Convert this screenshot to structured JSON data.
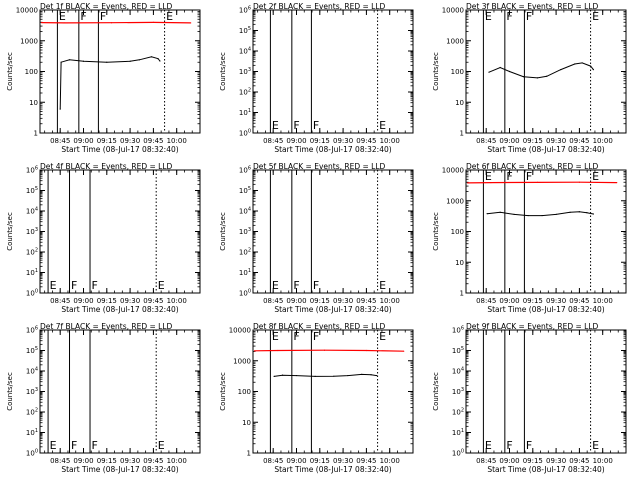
{
  "page": {
    "title": ""
  },
  "chart_data": [
    {
      "type": "line",
      "panel": "Det 1f",
      "title": "Det 1f BLACK = Events, RED = LLD",
      "xlabel": "Start Time (08-Jul-17 08:32:40)",
      "ylabel": "Counts/sec",
      "y_scale": "log",
      "ylim": [
        1,
        10000
      ],
      "y_tick_style": "plain",
      "x_tick_labels": [
        "08:45",
        "09:00",
        "09:15",
        "09:30",
        "09:45",
        "10:00"
      ],
      "series": [
        {
          "name": "BLACK = Events",
          "color": "#000000",
          "style": "black-curve",
          "points": [
            [
              8.75,
              6
            ],
            [
              8.76,
              200
            ],
            [
              8.85,
              240
            ],
            [
              9.0,
              215
            ],
            [
              9.25,
              200
            ],
            [
              9.5,
              215
            ],
            [
              9.6,
              240
            ],
            [
              9.73,
              300
            ],
            [
              9.8,
              260
            ],
            [
              9.82,
              220
            ]
          ]
        },
        {
          "name": "RED = LLD",
          "color": "#ff0000",
          "style": "red-flat",
          "points": [
            [
              8.55,
              3900
            ],
            [
              8.8,
              3800
            ],
            [
              9.3,
              3850
            ],
            [
              9.75,
              3950
            ],
            [
              10.15,
              3800
            ]
          ]
        }
      ],
      "annotations": [
        {
          "text": "E",
          "x": 8.72,
          "y_pos": "top",
          "line": "solid"
        },
        {
          "text": "F",
          "x": 8.95,
          "y_pos": "top",
          "line": "solid"
        },
        {
          "text": "F",
          "x": 9.16,
          "y_pos": "top",
          "line": "solid"
        },
        {
          "text": "E",
          "x": 9.87,
          "y_pos": "top",
          "line": "dotted"
        }
      ]
    },
    {
      "type": "line",
      "panel": "Det 2f",
      "title": "Det 2f BLACK = Events, RED = LLD",
      "xlabel": "Start Time (08-Jul-17 08:32:40)",
      "ylabel": "Counts/sec",
      "y_scale": "log",
      "ylim": [
        1,
        1000000
      ],
      "y_tick_style": "power",
      "x_tick_labels": [
        "08:45",
        "09:00",
        "09:15",
        "09:30",
        "09:45",
        "10:00"
      ],
      "series": [],
      "annotations": [
        {
          "text": "E",
          "x": 8.72,
          "y_pos": "bottom",
          "line": "solid"
        },
        {
          "text": "F",
          "x": 8.95,
          "y_pos": "bottom",
          "line": "solid"
        },
        {
          "text": "F",
          "x": 9.16,
          "y_pos": "bottom",
          "line": "solid"
        },
        {
          "text": "E",
          "x": 9.87,
          "y_pos": "bottom",
          "line": "dotted"
        }
      ]
    },
    {
      "type": "line",
      "panel": "Det 3f",
      "title": "Det 3f BLACK = Events, RED = LLD",
      "xlabel": "Start Time (08-Jul-17 08:32:40)",
      "ylabel": "Counts/sec",
      "y_scale": "log",
      "ylim": [
        1,
        10000
      ],
      "y_tick_style": "plain",
      "x_tick_labels": [
        "08:45",
        "09:00",
        "09:15",
        "09:30",
        "09:45",
        "10:00"
      ],
      "series": [
        {
          "name": "BLACK = Events",
          "color": "#000000",
          "style": "black-curve",
          "points": [
            [
              8.78,
              95
            ],
            [
              8.9,
              135
            ],
            [
              9.0,
              100
            ],
            [
              9.15,
              68
            ],
            [
              9.3,
              62
            ],
            [
              9.4,
              70
            ],
            [
              9.55,
              115
            ],
            [
              9.7,
              175
            ],
            [
              9.78,
              190
            ],
            [
              9.87,
              150
            ],
            [
              9.9,
              115
            ]
          ]
        }
      ],
      "annotations": [
        {
          "text": "E",
          "x": 8.72,
          "y_pos": "top",
          "line": "solid"
        },
        {
          "text": "F",
          "x": 8.95,
          "y_pos": "top",
          "line": "solid"
        },
        {
          "text": "F",
          "x": 9.16,
          "y_pos": "top",
          "line": "solid"
        },
        {
          "text": "E",
          "x": 9.87,
          "y_pos": "top",
          "line": "dotted"
        }
      ]
    },
    {
      "type": "line",
      "panel": "Det 4f",
      "title": "Det 4f BLACK = Events, RED = LLD",
      "xlabel": "Start Time (08-Jul-17 08:32:40)",
      "ylabel": "Counts/sec",
      "y_scale": "log",
      "ylim": [
        1,
        1000000
      ],
      "y_tick_style": "power",
      "x_tick_labels": [
        "08:45",
        "09:00",
        "09:15",
        "09:30",
        "09:45",
        "10:00"
      ],
      "series": [],
      "annotations": [
        {
          "text": "E",
          "x": 8.62,
          "y_pos": "bottom",
          "line": "solid"
        },
        {
          "text": "F",
          "x": 8.85,
          "y_pos": "bottom",
          "line": "solid"
        },
        {
          "text": "F",
          "x": 9.07,
          "y_pos": "bottom",
          "line": "solid"
        },
        {
          "text": "E",
          "x": 9.78,
          "y_pos": "bottom",
          "line": "dotted"
        }
      ]
    },
    {
      "type": "line",
      "panel": "Det 5f",
      "title": "Det 5f BLACK = Events, RED = LLD",
      "xlabel": "Start Time (08-Jul-17 08:32:40)",
      "ylabel": "Counts/sec",
      "y_scale": "log",
      "ylim": [
        1,
        1000000
      ],
      "y_tick_style": "power",
      "x_tick_labels": [
        "08:45",
        "09:00",
        "09:15",
        "09:30",
        "09:45",
        "10:00"
      ],
      "series": [],
      "annotations": [
        {
          "text": "E",
          "x": 8.72,
          "y_pos": "bottom",
          "line": "solid"
        },
        {
          "text": "F",
          "x": 8.95,
          "y_pos": "bottom",
          "line": "solid"
        },
        {
          "text": "F",
          "x": 9.16,
          "y_pos": "bottom",
          "line": "solid"
        },
        {
          "text": "E",
          "x": 9.87,
          "y_pos": "bottom",
          "line": "dotted"
        }
      ]
    },
    {
      "type": "line",
      "panel": "Det 6f",
      "title": "Det 6f BLACK = Events, RED = LLD",
      "xlabel": "Start Time (08-Jul-17 08:32:40)",
      "ylabel": "Counts/sec",
      "y_scale": "log",
      "ylim": [
        1,
        10000
      ],
      "y_tick_style": "plain",
      "x_tick_labels": [
        "08:45",
        "09:00",
        "09:15",
        "09:30",
        "09:45",
        "10:00"
      ],
      "series": [
        {
          "name": "BLACK = Events",
          "color": "#000000",
          "style": "black-curve",
          "points": [
            [
              8.76,
              380
            ],
            [
              8.9,
              420
            ],
            [
              9.05,
              360
            ],
            [
              9.2,
              330
            ],
            [
              9.35,
              330
            ],
            [
              9.5,
              360
            ],
            [
              9.65,
              420
            ],
            [
              9.75,
              440
            ],
            [
              9.83,
              410
            ],
            [
              9.9,
              370
            ]
          ]
        },
        {
          "name": "RED = LLD",
          "color": "#ff0000",
          "style": "red-flat",
          "points": [
            [
              8.55,
              3800
            ],
            [
              8.8,
              3900
            ],
            [
              9.3,
              3950
            ],
            [
              9.75,
              4000
            ],
            [
              10.15,
              3900
            ]
          ]
        }
      ],
      "annotations": [
        {
          "text": "E",
          "x": 8.72,
          "y_pos": "top",
          "line": "solid"
        },
        {
          "text": "F",
          "x": 8.95,
          "y_pos": "top",
          "line": "solid"
        },
        {
          "text": "F",
          "x": 9.16,
          "y_pos": "top",
          "line": "solid"
        },
        {
          "text": "E",
          "x": 9.87,
          "y_pos": "top",
          "line": "dotted"
        }
      ]
    },
    {
      "type": "line",
      "panel": "Det 7f",
      "title": "Det 7f BLACK = Events, RED = LLD",
      "xlabel": "Start Time (08-Jul-17 08:32:40)",
      "ylabel": "Counts/sec",
      "y_scale": "log",
      "ylim": [
        1,
        1000000
      ],
      "y_tick_style": "power",
      "x_tick_labels": [
        "08:45",
        "09:00",
        "09:15",
        "09:30",
        "09:45",
        "10:00"
      ],
      "series": [],
      "annotations": [
        {
          "text": "E",
          "x": 8.62,
          "y_pos": "bottom",
          "line": "solid"
        },
        {
          "text": "F",
          "x": 8.85,
          "y_pos": "bottom",
          "line": "solid"
        },
        {
          "text": "F",
          "x": 9.07,
          "y_pos": "bottom",
          "line": "solid"
        },
        {
          "text": "E",
          "x": 9.78,
          "y_pos": "bottom",
          "line": "dotted"
        }
      ]
    },
    {
      "type": "line",
      "panel": "Det 8f",
      "title": "Det 8f BLACK = Events, RED = LLD",
      "xlabel": "Start Time (08-Jul-17 08:32:40)",
      "ylabel": "Counts/sec",
      "y_scale": "log",
      "ylim": [
        1,
        10000
      ],
      "y_tick_style": "plain",
      "x_tick_labels": [
        "08:45",
        "09:00",
        "09:15",
        "09:30",
        "09:45",
        "10:00"
      ],
      "series": [
        {
          "name": "BLACK = Events",
          "color": "#000000",
          "style": "black-curve",
          "points": [
            [
              8.76,
              310
            ],
            [
              8.85,
              340
            ],
            [
              9.0,
              330
            ],
            [
              9.2,
              310
            ],
            [
              9.4,
              315
            ],
            [
              9.55,
              330
            ],
            [
              9.7,
              360
            ],
            [
              9.8,
              350
            ],
            [
              9.86,
              330
            ]
          ]
        },
        {
          "name": "RED = LLD",
          "color": "#ff0000",
          "style": "red-flat",
          "points": [
            [
              8.55,
              2100
            ],
            [
              8.8,
              2150
            ],
            [
              9.3,
              2200
            ],
            [
              9.75,
              2150
            ],
            [
              10.15,
              2050
            ]
          ]
        }
      ],
      "annotations": [
        {
          "text": "E",
          "x": 8.72,
          "y_pos": "top",
          "line": "solid"
        },
        {
          "text": "F",
          "x": 8.95,
          "y_pos": "top",
          "line": "solid"
        },
        {
          "text": "F",
          "x": 9.16,
          "y_pos": "top",
          "line": "solid"
        },
        {
          "text": "E",
          "x": 9.87,
          "y_pos": "top",
          "line": "dotted"
        }
      ]
    },
    {
      "type": "line",
      "panel": "Det 9f",
      "title": "Det 9f BLACK = Events, RED = LLD",
      "xlabel": "Start Time (08-Jul-17 08:32:40)",
      "ylabel": "Counts/sec",
      "y_scale": "log",
      "ylim": [
        1,
        1000000
      ],
      "y_tick_style": "power",
      "x_tick_labels": [
        "08:45",
        "09:00",
        "09:15",
        "09:30",
        "09:45",
        "10:00"
      ],
      "series": [],
      "annotations": [
        {
          "text": "E",
          "x": 8.72,
          "y_pos": "bottom",
          "line": "solid"
        },
        {
          "text": "F",
          "x": 8.95,
          "y_pos": "bottom",
          "line": "solid"
        },
        {
          "text": "F",
          "x": 9.16,
          "y_pos": "bottom",
          "line": "solid"
        },
        {
          "text": "E",
          "x": 9.87,
          "y_pos": "bottom",
          "line": "dotted"
        }
      ]
    }
  ]
}
